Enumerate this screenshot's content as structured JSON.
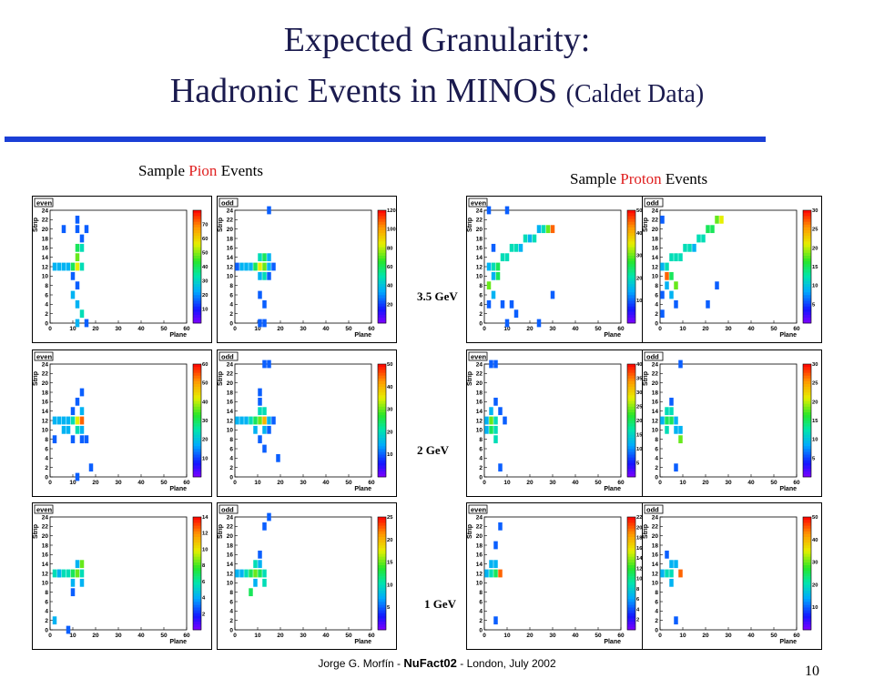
{
  "title": {
    "line1": "Expected Granularity:",
    "line2_main": "Hadronic Events in MINOS ",
    "line2_paren": "(Caldet Data)"
  },
  "headings": {
    "pion_prefix": "Sample ",
    "pion_highlight": "Pion",
    "pion_suffix": " Events",
    "proton_prefix": "Sample ",
    "proton_highlight": "Proton",
    "proton_suffix": " Events"
  },
  "energies": [
    "3.5 GeV",
    "2 GeV",
    "1 GeV"
  ],
  "footer": {
    "author": "Jorge G. Morfín - ",
    "conference": "NuFact02",
    "location": " - London, July 2002"
  },
  "page_number": "10",
  "colors": {
    "title": "#1a1a4e",
    "rule": "#1b3fd6",
    "highlight": "#e02020"
  },
  "chart_data": {
    "type": "heatmap",
    "xlabel": "Plane",
    "ylabel": "Strip",
    "x_ticks": [
      0,
      10,
      20,
      30,
      40,
      50,
      60
    ],
    "y_ticks": [
      0,
      2,
      4,
      6,
      8,
      10,
      12,
      14,
      16,
      18,
      20,
      22,
      24
    ],
    "xlim": [
      0,
      60
    ],
    "ylim": [
      0,
      24
    ],
    "panels": [
      {
        "particle": "pion",
        "energy": "3.5 GeV",
        "view": "even",
        "zmax": 80,
        "z_ticks": [
          0,
          10,
          20,
          30,
          40,
          50,
          60,
          70
        ],
        "cells": [
          [
            2,
            12,
            0.3
          ],
          [
            4,
            12,
            0.3
          ],
          [
            6,
            12,
            0.3
          ],
          [
            8,
            12,
            0.3
          ],
          [
            10,
            12,
            0.5
          ],
          [
            12,
            12,
            0.7
          ],
          [
            14,
            12,
            0.4
          ],
          [
            10,
            10,
            0.2
          ],
          [
            12,
            14,
            0.6
          ],
          [
            12,
            16,
            0.5
          ],
          [
            14,
            18,
            0.2
          ],
          [
            12,
            20,
            0.2
          ],
          [
            16,
            20,
            0.2
          ],
          [
            14,
            16,
            0.4
          ],
          [
            12,
            8,
            0.2
          ],
          [
            10,
            6,
            0.3
          ],
          [
            12,
            4,
            0.3
          ],
          [
            14,
            2,
            0.4
          ],
          [
            12,
            0,
            0.3
          ],
          [
            16,
            0,
            0.2
          ],
          [
            6,
            20,
            0.2
          ],
          [
            12,
            22,
            0.2
          ]
        ]
      },
      {
        "particle": "pion",
        "energy": "3.5 GeV",
        "view": "odd",
        "zmax": 120,
        "z_ticks": [
          0,
          20,
          40,
          60,
          80,
          100,
          120
        ],
        "cells": [
          [
            1,
            12,
            0.2
          ],
          [
            3,
            12,
            0.3
          ],
          [
            5,
            12,
            0.3
          ],
          [
            7,
            12,
            0.3
          ],
          [
            9,
            12,
            0.5
          ],
          [
            11,
            12,
            0.7
          ],
          [
            13,
            12,
            0.6
          ],
          [
            11,
            14,
            0.4
          ],
          [
            13,
            14,
            0.5
          ],
          [
            13,
            10,
            0.4
          ],
          [
            11,
            10,
            0.3
          ],
          [
            15,
            12,
            0.3
          ],
          [
            17,
            12,
            0.2
          ],
          [
            15,
            14,
            0.3
          ],
          [
            11,
            6,
            0.2
          ],
          [
            13,
            4,
            0.2
          ],
          [
            11,
            0,
            0.2
          ],
          [
            13,
            0,
            0.2
          ],
          [
            15,
            10,
            0.2
          ],
          [
            15,
            24,
            0.2
          ]
        ]
      },
      {
        "particle": "proton",
        "energy": "3.5 GeV",
        "view": "even",
        "zmax": 50,
        "z_ticks": [
          0,
          10,
          20,
          30,
          40,
          50
        ],
        "cells": [
          [
            2,
            12,
            0.3
          ],
          [
            4,
            12,
            0.4
          ],
          [
            6,
            12,
            0.5
          ],
          [
            8,
            14,
            0.4
          ],
          [
            10,
            14,
            0.4
          ],
          [
            12,
            16,
            0.4
          ],
          [
            14,
            16,
            0.4
          ],
          [
            16,
            16,
            0.3
          ],
          [
            18,
            18,
            0.4
          ],
          [
            20,
            18,
            0.3
          ],
          [
            22,
            18,
            0.4
          ],
          [
            24,
            20,
            0.3
          ],
          [
            26,
            20,
            0.4
          ],
          [
            28,
            20,
            0.6
          ],
          [
            30,
            20,
            0.9
          ],
          [
            4,
            10,
            0.3
          ],
          [
            6,
            10,
            0.5
          ],
          [
            2,
            8,
            0.6
          ],
          [
            4,
            6,
            0.3
          ],
          [
            8,
            4,
            0.2
          ],
          [
            2,
            4,
            0.2
          ],
          [
            12,
            4,
            0.2
          ],
          [
            14,
            2,
            0.2
          ],
          [
            10,
            0,
            0.2
          ],
          [
            2,
            24,
            0.2
          ],
          [
            10,
            24,
            0.2
          ],
          [
            30,
            6,
            0.2
          ],
          [
            24,
            0,
            0.2
          ],
          [
            4,
            16,
            0.2
          ]
        ]
      },
      {
        "particle": "proton",
        "energy": "3.5 GeV",
        "view": "odd",
        "zmax": 30,
        "z_ticks": [
          0,
          5,
          10,
          15,
          20,
          25,
          30
        ],
        "cells": [
          [
            1,
            12,
            0.3
          ],
          [
            3,
            12,
            0.4
          ],
          [
            5,
            14,
            0.4
          ],
          [
            7,
            14,
            0.4
          ],
          [
            9,
            14,
            0.4
          ],
          [
            11,
            16,
            0.4
          ],
          [
            13,
            16,
            0.4
          ],
          [
            15,
            16,
            0.3
          ],
          [
            17,
            18,
            0.4
          ],
          [
            19,
            18,
            0.4
          ],
          [
            21,
            20,
            0.5
          ],
          [
            23,
            20,
            0.5
          ],
          [
            25,
            22,
            0.6
          ],
          [
            27,
            22,
            0.7
          ],
          [
            3,
            10,
            0.9
          ],
          [
            5,
            10,
            0.5
          ],
          [
            7,
            8,
            0.6
          ],
          [
            3,
            8,
            0.3
          ],
          [
            5,
            6,
            0.3
          ],
          [
            7,
            4,
            0.2
          ],
          [
            1,
            6,
            0.2
          ],
          [
            1,
            22,
            0.2
          ],
          [
            25,
            8,
            0.2
          ],
          [
            21,
            4,
            0.2
          ],
          [
            1,
            2,
            0.2
          ]
        ]
      },
      {
        "particle": "pion",
        "energy": "2 GeV",
        "view": "even",
        "zmax": 60,
        "z_ticks": [
          0,
          10,
          20,
          30,
          40,
          50,
          60
        ],
        "cells": [
          [
            2,
            12,
            0.3
          ],
          [
            4,
            12,
            0.3
          ],
          [
            6,
            12,
            0.3
          ],
          [
            8,
            12,
            0.3
          ],
          [
            10,
            12,
            0.4
          ],
          [
            12,
            12,
            0.7
          ],
          [
            14,
            12,
            0.9
          ],
          [
            12,
            10,
            0.4
          ],
          [
            14,
            10,
            0.3
          ],
          [
            10,
            14,
            0.2
          ],
          [
            12,
            16,
            0.2
          ],
          [
            14,
            14,
            0.3
          ],
          [
            10,
            8,
            0.2
          ],
          [
            14,
            8,
            0.2
          ],
          [
            16,
            8,
            0.2
          ],
          [
            6,
            10,
            0.3
          ],
          [
            8,
            10,
            0.3
          ],
          [
            18,
            2,
            0.2
          ],
          [
            12,
            0,
            0.2
          ],
          [
            14,
            18,
            0.2
          ],
          [
            2,
            8,
            0.2
          ]
        ]
      },
      {
        "particle": "pion",
        "energy": "2 GeV",
        "view": "odd",
        "zmax": 50,
        "z_ticks": [
          0,
          10,
          20,
          30,
          40,
          50
        ],
        "cells": [
          [
            1,
            12,
            0.3
          ],
          [
            3,
            12,
            0.3
          ],
          [
            5,
            12,
            0.3
          ],
          [
            7,
            12,
            0.4
          ],
          [
            9,
            12,
            0.5
          ],
          [
            11,
            12,
            0.6
          ],
          [
            13,
            12,
            0.8
          ],
          [
            11,
            14,
            0.4
          ],
          [
            13,
            14,
            0.4
          ],
          [
            9,
            10,
            0.3
          ],
          [
            13,
            10,
            0.3
          ],
          [
            15,
            10,
            0.2
          ],
          [
            11,
            8,
            0.2
          ],
          [
            13,
            6,
            0.2
          ],
          [
            15,
            12,
            0.3
          ],
          [
            17,
            12,
            0.2
          ],
          [
            11,
            18,
            0.2
          ],
          [
            13,
            24,
            0.2
          ],
          [
            15,
            24,
            0.2
          ],
          [
            19,
            4,
            0.2
          ],
          [
            11,
            16,
            0.2
          ]
        ]
      },
      {
        "particle": "proton",
        "energy": "2 GeV",
        "view": "even",
        "zmax": 40,
        "z_ticks": [
          0,
          5,
          10,
          15,
          20,
          25,
          30,
          35,
          40
        ],
        "cells": [
          [
            1,
            12,
            0.3
          ],
          [
            3,
            12,
            0.6
          ],
          [
            5,
            12,
            0.4
          ],
          [
            3,
            10,
            0.5
          ],
          [
            5,
            10,
            0.4
          ],
          [
            5,
            8,
            0.4
          ],
          [
            3,
            14,
            0.3
          ],
          [
            7,
            14,
            0.2
          ],
          [
            9,
            12,
            0.2
          ],
          [
            3,
            24,
            0.2
          ],
          [
            5,
            24,
            0.2
          ],
          [
            5,
            16,
            0.2
          ],
          [
            7,
            2,
            0.2
          ],
          [
            1,
            10,
            0.3
          ]
        ]
      },
      {
        "particle": "proton",
        "energy": "2 GeV",
        "view": "odd",
        "zmax": 30,
        "z_ticks": [
          0,
          5,
          10,
          15,
          20,
          25,
          30
        ],
        "cells": [
          [
            1,
            12,
            0.3
          ],
          [
            3,
            12,
            0.5
          ],
          [
            5,
            12,
            0.5
          ],
          [
            3,
            14,
            0.4
          ],
          [
            5,
            14,
            0.4
          ],
          [
            7,
            12,
            0.3
          ],
          [
            3,
            10,
            0.4
          ],
          [
            7,
            10,
            0.3
          ],
          [
            9,
            10,
            0.3
          ],
          [
            9,
            8,
            0.6
          ],
          [
            5,
            16,
            0.2
          ],
          [
            9,
            24,
            0.2
          ],
          [
            7,
            2,
            0.2
          ]
        ]
      },
      {
        "particle": "pion",
        "energy": "1 GeV",
        "view": "even",
        "zmax": 14,
        "z_ticks": [
          0,
          2,
          4,
          6,
          8,
          10,
          12,
          14
        ],
        "cells": [
          [
            2,
            12,
            0.4
          ],
          [
            4,
            12,
            0.4
          ],
          [
            6,
            12,
            0.4
          ],
          [
            8,
            12,
            0.4
          ],
          [
            10,
            12,
            0.5
          ],
          [
            12,
            12,
            0.6
          ],
          [
            14,
            12,
            0.4
          ],
          [
            10,
            10,
            0.3
          ],
          [
            14,
            10,
            0.3
          ],
          [
            12,
            14,
            0.3
          ],
          [
            14,
            14,
            0.6
          ],
          [
            10,
            8,
            0.2
          ],
          [
            2,
            2,
            0.3
          ],
          [
            8,
            0,
            0.2
          ],
          [
            4,
            12,
            0.3
          ]
        ]
      },
      {
        "particle": "pion",
        "energy": "1 GeV",
        "view": "odd",
        "zmax": 25,
        "z_ticks": [
          0,
          5,
          10,
          15,
          20,
          25
        ],
        "cells": [
          [
            1,
            12,
            0.3
          ],
          [
            3,
            12,
            0.3
          ],
          [
            5,
            12,
            0.4
          ],
          [
            7,
            12,
            0.5
          ],
          [
            9,
            12,
            0.6
          ],
          [
            11,
            12,
            0.5
          ],
          [
            13,
            12,
            0.4
          ],
          [
            9,
            14,
            0.4
          ],
          [
            11,
            14,
            0.3
          ],
          [
            9,
            10,
            0.3
          ],
          [
            13,
            10,
            0.4
          ],
          [
            7,
            8,
            0.5
          ],
          [
            11,
            16,
            0.2
          ],
          [
            13,
            22,
            0.2
          ],
          [
            15,
            24,
            0.2
          ]
        ]
      },
      {
        "particle": "proton",
        "energy": "1 GeV",
        "view": "even",
        "zmax": 22,
        "z_ticks": [
          0,
          2,
          4,
          6,
          8,
          10,
          12,
          14,
          16,
          18,
          20,
          22
        ],
        "cells": [
          [
            1,
            12,
            0.3
          ],
          [
            3,
            12,
            0.4
          ],
          [
            5,
            12,
            0.5
          ],
          [
            7,
            12,
            0.9
          ],
          [
            5,
            14,
            0.3
          ],
          [
            3,
            14,
            0.3
          ],
          [
            7,
            22,
            0.2
          ],
          [
            5,
            18,
            0.2
          ],
          [
            5,
            2,
            0.2
          ]
        ]
      },
      {
        "particle": "proton",
        "energy": "1 GeV",
        "view": "odd",
        "zmax": 50,
        "z_ticks": [
          0,
          10,
          20,
          30,
          40,
          50
        ],
        "cells": [
          [
            1,
            12,
            0.3
          ],
          [
            3,
            12,
            0.4
          ],
          [
            5,
            12,
            0.4
          ],
          [
            7,
            14,
            0.3
          ],
          [
            9,
            12,
            0.9
          ],
          [
            5,
            10,
            0.3
          ],
          [
            5,
            14,
            0.3
          ],
          [
            7,
            2,
            0.2
          ],
          [
            3,
            16,
            0.2
          ]
        ]
      }
    ]
  }
}
